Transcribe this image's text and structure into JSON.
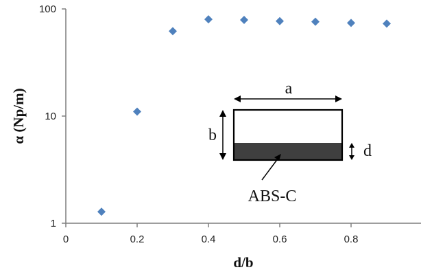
{
  "colors": {
    "marker": "#4f81bd",
    "axis": "#7f7f7f",
    "inset_fill": "#3f3f3f",
    "text": "#111111"
  },
  "chart_data": {
    "type": "scatter",
    "title": "",
    "xlabel": "d/b",
    "ylabel": "α (Np/m)",
    "x": [
      0.1,
      0.2,
      0.3,
      0.4,
      0.5,
      0.6,
      0.7,
      0.8,
      0.9
    ],
    "y": [
      1.28,
      11.0,
      62.0,
      80.0,
      79.0,
      77.0,
      76.0,
      74.0,
      73.0
    ],
    "xlim": [
      0,
      1
    ],
    "ylim": [
      1,
      100
    ],
    "yscale": "log",
    "x_ticks": [
      "0",
      "0.2",
      "0.4",
      "0.6",
      "0.8"
    ],
    "y_ticks": [
      "1",
      "10",
      "100"
    ],
    "grid": false,
    "marker": "diamond",
    "inset": {
      "width_label": "a",
      "height_label": "b",
      "layer_label": "d",
      "material_label": "ABS-C"
    }
  }
}
